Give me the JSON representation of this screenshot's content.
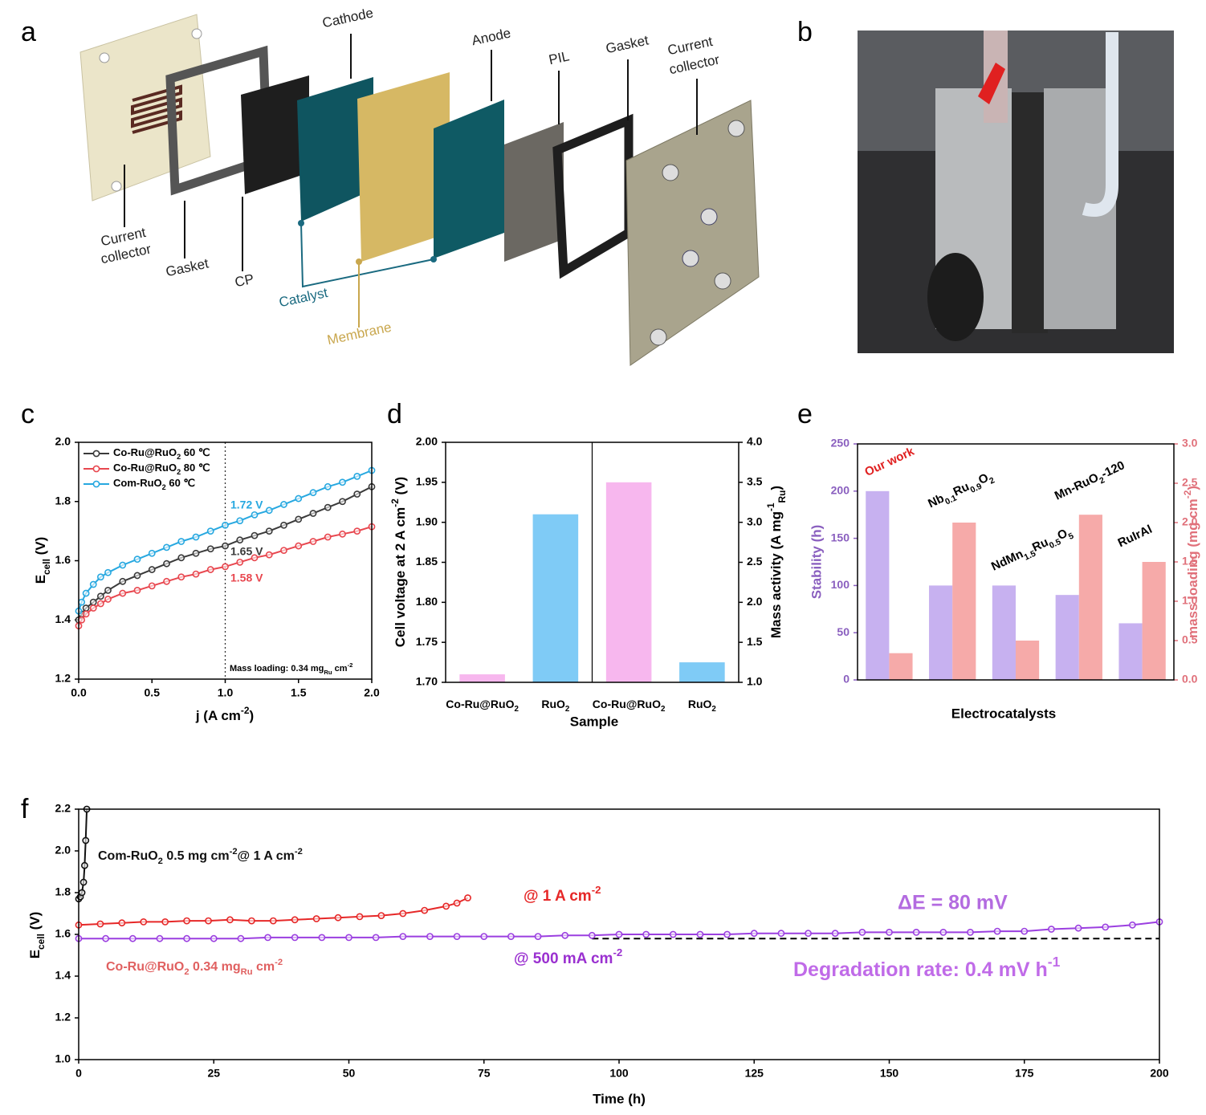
{
  "diagram": {
    "panel": "a",
    "labels": [
      "Cathode",
      "Anode",
      "PIL",
      "Gasket",
      [
        "Current",
        "collector"
      ],
      [
        "Current",
        "collector"
      ],
      "Gasket",
      "CP",
      "Catalyst",
      "Membrane"
    ]
  },
  "photo": {
    "panel": "b"
  },
  "chart_data": [
    {
      "type": "line",
      "panel": "c",
      "xlabel": [
        "j (A cm",
        {
          "sup": "-2"
        },
        ")"
      ],
      "ylabel": [
        "E",
        {
          "sub": "cell"
        },
        " (V)"
      ],
      "xlim": [
        0,
        2
      ],
      "xticks": [
        {
          "value": 0,
          "label": "0.0"
        },
        0.5,
        {
          "value": 1,
          "label": "1.0"
        },
        1.5,
        {
          "value": 2,
          "label": "2.0"
        }
      ],
      "ylim": [
        1.2,
        2.0
      ],
      "yticks": [
        1.2,
        1.4,
        1.6,
        1.8,
        {
          "value": 2,
          "label": "2.0"
        }
      ],
      "legend": "upper left",
      "vline": 1.0,
      "x": [
        0,
        0.02,
        0.05,
        0.1,
        0.15,
        0.2,
        0.3,
        0.4,
        0.5,
        0.6,
        0.7,
        0.8,
        0.9,
        1.0,
        1.1,
        1.2,
        1.3,
        1.4,
        1.5,
        1.6,
        1.7,
        1.8,
        1.9,
        2.0
      ],
      "series": [
        {
          "name": [
            "Co-Ru@RuO",
            {
              "sub": "2"
            },
            "  60 ℃"
          ],
          "color": "#3a3a3a",
          "values": [
            1.4,
            1.42,
            1.44,
            1.46,
            1.48,
            1.5,
            1.53,
            1.55,
            1.57,
            1.59,
            1.61,
            1.625,
            1.64,
            1.65,
            1.67,
            1.685,
            1.7,
            1.72,
            1.74,
            1.76,
            1.78,
            1.8,
            1.825,
            1.85
          ]
        },
        {
          "name": [
            "Co-Ru@RuO",
            {
              "sub": "2"
            },
            "  80 ℃"
          ],
          "color": "#e8474f",
          "values": [
            1.38,
            1.4,
            1.42,
            1.44,
            1.455,
            1.47,
            1.49,
            1.5,
            1.515,
            1.53,
            1.545,
            1.555,
            1.57,
            1.58,
            1.595,
            1.61,
            1.62,
            1.635,
            1.65,
            1.665,
            1.68,
            1.69,
            1.7,
            1.715
          ]
        },
        {
          "name": [
            "Com-RuO",
            {
              "sub": "2"
            },
            " 60 ℃"
          ],
          "color": "#27a8e0",
          "values": [
            1.43,
            1.46,
            1.49,
            1.52,
            1.545,
            1.56,
            1.585,
            1.605,
            1.625,
            1.645,
            1.665,
            1.68,
            1.7,
            1.72,
            1.735,
            1.755,
            1.77,
            1.79,
            1.81,
            1.83,
            1.85,
            1.865,
            1.885,
            1.905
          ]
        }
      ],
      "annotations": [
        {
          "text": "1.72 V",
          "color": "#27a8e0"
        },
        {
          "text": "1.65 V",
          "color": "#3a3a3a"
        },
        {
          "text": "1.58 V",
          "color": "#e8474f"
        },
        {
          "text": [
            "Mass loading: 0.34 mg",
            {
              "sub": "Ru"
            },
            " cm",
            {
              "sup": "-2"
            }
          ],
          "color": "#000"
        }
      ]
    },
    {
      "type": "bar",
      "panel": "d",
      "xlabel": "Sample",
      "ylabel": [
        "Cell voltage at 2 A cm",
        {
          "sup": "-2"
        },
        " (V)"
      ],
      "y2label": [
        "Mass activity (A mg",
        {
          "sup": "-1"
        },
        {
          "sub": "Ru"
        },
        ")"
      ],
      "categories": [
        [
          "Co-Ru@RuO",
          {
            "sub": "2"
          }
        ],
        [
          "RuO",
          {
            "sub": "2"
          }
        ],
        [
          "Co-Ru@RuO",
          {
            "sub": "2"
          }
        ],
        [
          "RuO",
          {
            "sub": "2"
          }
        ]
      ],
      "values": [
        1.71,
        1.91,
        3.5,
        1.25
      ],
      "axes": [
        "y",
        "y",
        "y2",
        "y2"
      ],
      "colors": [
        "#f7b7ee",
        "#7fcbf6",
        "#f7b7ee",
        "#7fcbf6"
      ],
      "ylim": [
        1.7,
        2.0
      ],
      "yticks": [
        {
          "value": 1.7,
          "label": "1.70"
        },
        1.75,
        {
          "value": 1.8,
          "label": "1.80"
        },
        1.85,
        {
          "value": 1.9,
          "label": "1.90"
        },
        1.95,
        {
          "value": 2,
          "label": "2.00"
        }
      ],
      "y2lim": [
        1,
        4
      ],
      "y2ticks": [
        {
          "value": 1,
          "label": "1.0"
        },
        1.5,
        {
          "value": 2,
          "label": "2.0"
        },
        2.5,
        {
          "value": 3,
          "label": "3.0"
        },
        3.5,
        {
          "value": 4,
          "label": "4.0"
        }
      ]
    },
    {
      "type": "bar",
      "panel": "e",
      "xlabel": "Electrocatalysts",
      "ylabel": "Stability (h)",
      "y2label": [
        "mass loading (mg cm",
        {
          "sup": "-2"
        },
        ")"
      ],
      "categories": [
        "Our work",
        [
          "Nb",
          {
            "sub": "0.1"
          },
          "Ru",
          {
            "sub": "0.9"
          },
          "O",
          {
            "sub": "2"
          }
        ],
        [
          "NdMn",
          {
            "sub": "1.5"
          },
          "Ru",
          {
            "sub": "0.5"
          },
          "O",
          {
            "sub": "5"
          }
        ],
        [
          "Mn-RuO",
          {
            "sub": "2"
          },
          "-120"
        ],
        "RuIrAl"
      ],
      "category_colors": [
        "#e02020",
        "#000",
        "#000",
        "#000",
        "#000"
      ],
      "ylim": [
        0,
        250
      ],
      "yticks": [
        0,
        50,
        100,
        150,
        200,
        250
      ],
      "ycolor": "#8a5fbf",
      "y2lim": [
        0,
        3
      ],
      "y2ticks": [
        {
          "value": 0,
          "label": "0.0"
        },
        0.5,
        {
          "value": 1,
          "label": "1.0"
        },
        1.5,
        {
          "value": 2,
          "label": "2.0"
        },
        2.5,
        {
          "value": 3,
          "label": "3.0"
        }
      ],
      "y2color": "#e0707a",
      "series": [
        {
          "color": "#c7b1f0",
          "axis": "y",
          "values": [
            200,
            100,
            100,
            90,
            60
          ]
        },
        {
          "color": "#f6aaa9",
          "axis": "y2",
          "values": [
            0.34,
            2.0,
            0.5,
            2.1,
            1.5
          ]
        }
      ]
    },
    {
      "type": "line",
      "panel": "f",
      "xlabel": "Time (h)",
      "ylabel": [
        "E",
        {
          "sub": "cell"
        },
        " (V)"
      ],
      "xlim": [
        0,
        200
      ],
      "xticks": [
        0,
        25,
        50,
        75,
        100,
        125,
        150,
        175,
        200
      ],
      "ylim": [
        1.0,
        2.2
      ],
      "yticks": [
        {
          "value": 1,
          "label": "1.0"
        },
        1.2,
        1.4,
        1.6,
        1.8,
        {
          "value": 2,
          "label": "2.0"
        },
        2.2
      ],
      "hline": {
        "y": 1.58,
        "x": [
          95,
          200
        ]
      },
      "series": [
        {
          "color": "#111",
          "x": [
            0,
            0.3,
            0.6,
            0.9,
            1.1,
            1.3,
            1.5
          ],
          "values": [
            1.77,
            1.78,
            1.8,
            1.85,
            1.93,
            2.05,
            2.2
          ]
        },
        {
          "color": "#e62828",
          "x": [
            0,
            4,
            8,
            12,
            16,
            20,
            24,
            28,
            32,
            36,
            40,
            44,
            48,
            52,
            56,
            60,
            64,
            68,
            70,
            72
          ],
          "values": [
            1.645,
            1.65,
            1.655,
            1.66,
            1.66,
            1.665,
            1.665,
            1.67,
            1.665,
            1.665,
            1.67,
            1.675,
            1.68,
            1.685,
            1.69,
            1.7,
            1.715,
            1.735,
            1.75,
            1.775
          ]
        },
        {
          "color": "#9b3fe0",
          "x": [
            0,
            5,
            10,
            15,
            20,
            25,
            30,
            35,
            40,
            45,
            50,
            55,
            60,
            65,
            70,
            75,
            80,
            85,
            90,
            95,
            100,
            105,
            110,
            115,
            120,
            125,
            130,
            135,
            140,
            145,
            150,
            155,
            160,
            165,
            170,
            175,
            180,
            185,
            190,
            195,
            200
          ],
          "values": [
            1.58,
            1.58,
            1.58,
            1.58,
            1.58,
            1.58,
            1.58,
            1.585,
            1.585,
            1.585,
            1.585,
            1.585,
            1.59,
            1.59,
            1.59,
            1.59,
            1.59,
            1.59,
            1.595,
            1.595,
            1.6,
            1.6,
            1.6,
            1.6,
            1.6,
            1.605,
            1.605,
            1.605,
            1.605,
            1.61,
            1.61,
            1.61,
            1.61,
            1.61,
            1.615,
            1.615,
            1.625,
            1.63,
            1.635,
            1.645,
            1.66
          ]
        }
      ],
      "annotations": [
        {
          "text": [
            "Com-RuO",
            {
              "sub": "2"
            },
            "  0.5 mg cm",
            {
              "sup": "-2"
            },
            "@ 1 A cm",
            {
              "sup": "-2"
            }
          ],
          "color": "#111"
        },
        {
          "text": [
            "@ 1 A cm",
            {
              "sup": "-2"
            }
          ],
          "color": "#e62828"
        },
        {
          "text": "ΔE = 80 mV",
          "color": "#b36be0"
        },
        {
          "text": [
            "Co-Ru@RuO",
            {
              "sub": "2"
            },
            "  0.34 mg",
            {
              "sub": "Ru"
            },
            " cm",
            {
              "sup": "-2"
            }
          ],
          "color": "#e06060"
        },
        {
          "text": [
            "@ 500 mA cm",
            {
              "sup": "-2"
            }
          ],
          "color": "#9a30d0"
        },
        {
          "text": [
            "Degradation rate: 0.4 mV h",
            {
              "sup": "-1"
            }
          ],
          "color": "#c06be8"
        }
      ]
    }
  ]
}
